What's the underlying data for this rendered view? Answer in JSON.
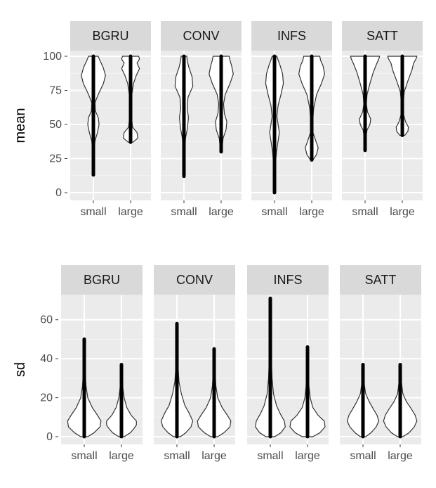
{
  "chart_data": [
    {
      "type": "violin",
      "ylabel": "mean",
      "ylim": [
        0,
        100
      ],
      "yticks": [
        "0",
        "25",
        "50",
        "75",
        "100"
      ],
      "categories": [
        "small",
        "large"
      ],
      "panels": [
        {
          "title": "BGRU",
          "groups": [
            {
              "category": "small",
              "min": 13,
              "max": 100,
              "density": [
                [
                  13,
                  0.02
                ],
                [
                  20,
                  0.03
                ],
                [
                  30,
                  0.05
                ],
                [
                  38,
                  0.1
                ],
                [
                  44,
                  0.25
                ],
                [
                  50,
                  0.35
                ],
                [
                  55,
                  0.3
                ],
                [
                  60,
                  0.12
                ],
                [
                  66,
                  0.1
                ],
                [
                  72,
                  0.3
                ],
                [
                  80,
                  0.62
                ],
                [
                  86,
                  0.75
                ],
                [
                  92,
                  0.6
                ],
                [
                  97,
                  0.4
                ],
                [
                  100,
                  0.3
                ]
              ]
            },
            {
              "category": "large",
              "min": 37,
              "max": 100,
              "density": [
                [
                  37,
                  0.15
                ],
                [
                  40,
                  0.45
                ],
                [
                  44,
                  0.4
                ],
                [
                  48,
                  0.12
                ],
                [
                  55,
                  0.06
                ],
                [
                  65,
                  0.05
                ],
                [
                  72,
                  0.08
                ],
                [
                  80,
                  0.18
                ],
                [
                  86,
                  0.35
                ],
                [
                  91,
                  0.55
                ],
                [
                  95,
                  0.4
                ],
                [
                  98,
                  0.55
                ],
                [
                  100,
                  0.5
                ]
              ]
            }
          ]
        },
        {
          "title": "CONV",
          "groups": [
            {
              "category": "small",
              "min": 12,
              "max": 100,
              "density": [
                [
                  12,
                  0.02
                ],
                [
                  20,
                  0.03
                ],
                [
                  30,
                  0.05
                ],
                [
                  40,
                  0.1
                ],
                [
                  48,
                  0.22
                ],
                [
                  55,
                  0.28
                ],
                [
                  62,
                  0.2
                ],
                [
                  70,
                  0.25
                ],
                [
                  78,
                  0.55
                ],
                [
                  85,
                  0.5
                ],
                [
                  92,
                  0.3
                ],
                [
                  97,
                  0.2
                ],
                [
                  100,
                  0.18
                ]
              ]
            },
            {
              "category": "large",
              "min": 30,
              "max": 100,
              "density": [
                [
                  30,
                  0.03
                ],
                [
                  40,
                  0.12
                ],
                [
                  46,
                  0.3
                ],
                [
                  52,
                  0.35
                ],
                [
                  58,
                  0.2
                ],
                [
                  65,
                  0.15
                ],
                [
                  72,
                  0.25
                ],
                [
                  80,
                  0.55
                ],
                [
                  87,
                  0.75
                ],
                [
                  93,
                  0.65
                ],
                [
                  97,
                  0.55
                ],
                [
                  100,
                  0.5
                ]
              ]
            }
          ]
        },
        {
          "title": "INFS",
          "groups": [
            {
              "category": "small",
              "min": 0,
              "max": 100,
              "density": [
                [
                  0,
                  0.02
                ],
                [
                  10,
                  0.03
                ],
                [
                  20,
                  0.05
                ],
                [
                  30,
                  0.12
                ],
                [
                  38,
                  0.22
                ],
                [
                  44,
                  0.3
                ],
                [
                  50,
                  0.22
                ],
                [
                  56,
                  0.15
                ],
                [
                  64,
                  0.22
                ],
                [
                  72,
                  0.4
                ],
                [
                  80,
                  0.55
                ],
                [
                  87,
                  0.5
                ],
                [
                  93,
                  0.35
                ],
                [
                  98,
                  0.2
                ],
                [
                  100,
                  0.15
                ]
              ]
            },
            {
              "category": "large",
              "min": 24,
              "max": 100,
              "density": [
                [
                  24,
                  0.08
                ],
                [
                  28,
                  0.3
                ],
                [
                  33,
                  0.4
                ],
                [
                  38,
                  0.25
                ],
                [
                  44,
                  0.08
                ],
                [
                  52,
                  0.06
                ],
                [
                  62,
                  0.12
                ],
                [
                  72,
                  0.3
                ],
                [
                  80,
                  0.6
                ],
                [
                  87,
                  0.8
                ],
                [
                  93,
                  0.7
                ],
                [
                  97,
                  0.55
                ],
                [
                  100,
                  0.5
                ]
              ]
            }
          ]
        },
        {
          "title": "SATT",
          "groups": [
            {
              "category": "small",
              "min": 31,
              "max": 100,
              "density": [
                [
                  31,
                  0.02
                ],
                [
                  40,
                  0.05
                ],
                [
                  46,
                  0.12
                ],
                [
                  50,
                  0.3
                ],
                [
                  54,
                  0.35
                ],
                [
                  59,
                  0.15
                ],
                [
                  65,
                  0.08
                ],
                [
                  72,
                  0.12
                ],
                [
                  80,
                  0.3
                ],
                [
                  88,
                  0.5
                ],
                [
                  94,
                  0.7
                ],
                [
                  98,
                  0.85
                ],
                [
                  100,
                  0.9
                ]
              ]
            },
            {
              "category": "large",
              "min": 42,
              "max": 100,
              "density": [
                [
                  42,
                  0.15
                ],
                [
                  45,
                  0.35
                ],
                [
                  48,
                  0.38
                ],
                [
                  52,
                  0.2
                ],
                [
                  58,
                  0.06
                ],
                [
                  66,
                  0.06
                ],
                [
                  74,
                  0.12
                ],
                [
                  82,
                  0.35
                ],
                [
                  90,
                  0.6
                ],
                [
                  95,
                  0.7
                ],
                [
                  98,
                  0.85
                ],
                [
                  100,
                  0.9
                ]
              ]
            }
          ]
        }
      ]
    },
    {
      "type": "violin",
      "ylabel": "sd",
      "ylim": [
        0,
        70
      ],
      "yticks": [
        "0",
        "20",
        "40",
        "60"
      ],
      "categories": [
        "small",
        "large"
      ],
      "panels": [
        {
          "title": "BGRU",
          "groups": [
            {
              "category": "small",
              "min": 0,
              "max": 50,
              "density": [
                [
                  0,
                  0.2
                ],
                [
                  2,
                  0.55
                ],
                [
                  5,
                  0.9
                ],
                [
                  8,
                  0.95
                ],
                [
                  11,
                  0.75
                ],
                [
                  15,
                  0.45
                ],
                [
                  20,
                  0.2
                ],
                [
                  26,
                  0.1
                ],
                [
                  32,
                  0.06
                ],
                [
                  40,
                  0.04
                ],
                [
                  50,
                  0.02
                ]
              ]
            },
            {
              "category": "large",
              "min": 0,
              "max": 37,
              "density": [
                [
                  0,
                  0.15
                ],
                [
                  2,
                  0.5
                ],
                [
                  4,
                  0.7
                ],
                [
                  6,
                  0.85
                ],
                [
                  8,
                  0.85
                ],
                [
                  11,
                  0.55
                ],
                [
                  15,
                  0.3
                ],
                [
                  20,
                  0.15
                ],
                [
                  25,
                  0.08
                ],
                [
                  31,
                  0.05
                ],
                [
                  37,
                  0.02
                ]
              ]
            }
          ]
        },
        {
          "title": "CONV",
          "groups": [
            {
              "category": "small",
              "min": 0,
              "max": 58,
              "density": [
                [
                  0,
                  0.2
                ],
                [
                  2,
                  0.5
                ],
                [
                  5,
                  0.8
                ],
                [
                  8,
                  0.9
                ],
                [
                  12,
                  0.7
                ],
                [
                  16,
                  0.45
                ],
                [
                  22,
                  0.25
                ],
                [
                  28,
                  0.12
                ],
                [
                  35,
                  0.07
                ],
                [
                  45,
                  0.04
                ],
                [
                  58,
                  0.02
                ]
              ]
            },
            {
              "category": "large",
              "min": 0,
              "max": 45,
              "density": [
                [
                  0,
                  0.2
                ],
                [
                  2,
                  0.55
                ],
                [
                  5,
                  0.9
                ],
                [
                  8,
                  0.95
                ],
                [
                  11,
                  0.75
                ],
                [
                  15,
                  0.45
                ],
                [
                  20,
                  0.2
                ],
                [
                  26,
                  0.1
                ],
                [
                  32,
                  0.06
                ],
                [
                  38,
                  0.04
                ],
                [
                  45,
                  0.02
                ]
              ]
            }
          ]
        },
        {
          "title": "INFS",
          "groups": [
            {
              "category": "small",
              "min": 0,
              "max": 71,
              "density": [
                [
                  0,
                  0.25
                ],
                [
                  2,
                  0.6
                ],
                [
                  5,
                  0.85
                ],
                [
                  8,
                  0.8
                ],
                [
                  12,
                  0.55
                ],
                [
                  16,
                  0.35
                ],
                [
                  22,
                  0.18
                ],
                [
                  30,
                  0.1
                ],
                [
                  40,
                  0.06
                ],
                [
                  55,
                  0.04
                ],
                [
                  71,
                  0.02
                ]
              ]
            },
            {
              "category": "large",
              "min": 0,
              "max": 46,
              "density": [
                [
                  0,
                  0.3
                ],
                [
                  2,
                  0.7
                ],
                [
                  5,
                  1.0
                ],
                [
                  8,
                  0.95
                ],
                [
                  11,
                  0.6
                ],
                [
                  15,
                  0.3
                ],
                [
                  20,
                  0.15
                ],
                [
                  26,
                  0.08
                ],
                [
                  33,
                  0.05
                ],
                [
                  40,
                  0.03
                ],
                [
                  46,
                  0.02
                ]
              ]
            }
          ]
        },
        {
          "title": "SATT",
          "groups": [
            {
              "category": "small",
              "min": 0,
              "max": 37,
              "density": [
                [
                  0,
                  0.15
                ],
                [
                  2,
                  0.45
                ],
                [
                  5,
                  0.75
                ],
                [
                  8,
                  0.9
                ],
                [
                  11,
                  0.8
                ],
                [
                  14,
                  0.6
                ],
                [
                  18,
                  0.35
                ],
                [
                  22,
                  0.15
                ],
                [
                  28,
                  0.06
                ],
                [
                  33,
                  0.04
                ],
                [
                  37,
                  0.02
                ]
              ]
            },
            {
              "category": "large",
              "min": 0,
              "max": 37,
              "density": [
                [
                  0,
                  0.15
                ],
                [
                  2,
                  0.5
                ],
                [
                  5,
                  0.8
                ],
                [
                  8,
                  0.95
                ],
                [
                  11,
                  0.85
                ],
                [
                  14,
                  0.65
                ],
                [
                  18,
                  0.35
                ],
                [
                  22,
                  0.15
                ],
                [
                  28,
                  0.07
                ],
                [
                  33,
                  0.04
                ],
                [
                  37,
                  0.02
                ]
              ]
            }
          ]
        }
      ]
    }
  ]
}
